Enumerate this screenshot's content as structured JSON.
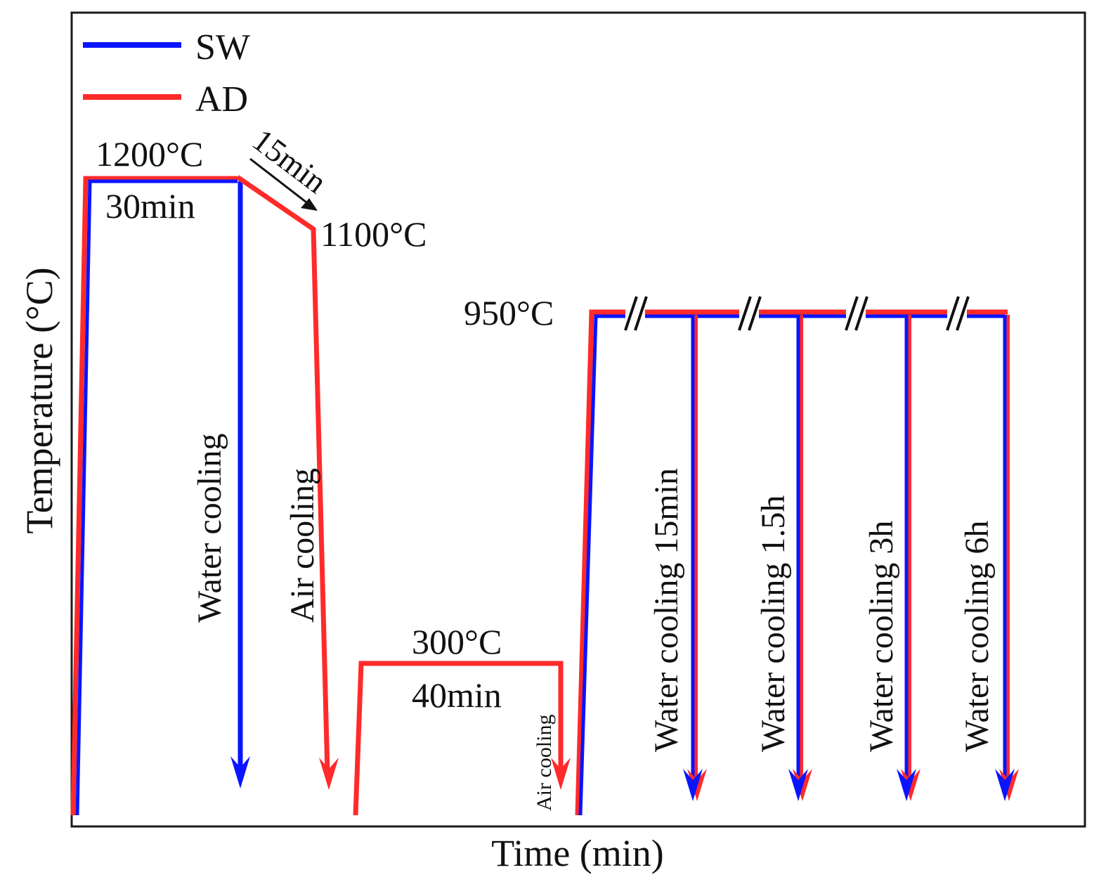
{
  "colors": {
    "sw": "#0a14ff",
    "ad": "#ff2a2a",
    "frame": "#1a1a1a",
    "arrow": "#111111"
  },
  "chart_data": {
    "type": "line",
    "title": "",
    "xlabel": "Time (min)",
    "ylabel": "Temperature (°C)",
    "grid": false,
    "legend_position": "top-left",
    "series": [
      {
        "name": "SW",
        "key": "sw"
      },
      {
        "name": "AD",
        "key": "ad"
      }
    ],
    "temperature_labels": {
      "t1200": "1200°C",
      "hold30": "30min",
      "ramp15": "15min",
      "t1100": "1100°C",
      "t950": "950°C",
      "t300": "300°C",
      "hold40": "40min"
    },
    "cooling_labels": {
      "water_main": "Water cooling",
      "air_main": "Air cooling",
      "air_small": "Air cooling",
      "w15": "Water cooling  15min",
      "w1_5": "Water cooling  1.5h",
      "w3": "Water cooling  3h",
      "w6": "Water cooling  6h"
    }
  }
}
